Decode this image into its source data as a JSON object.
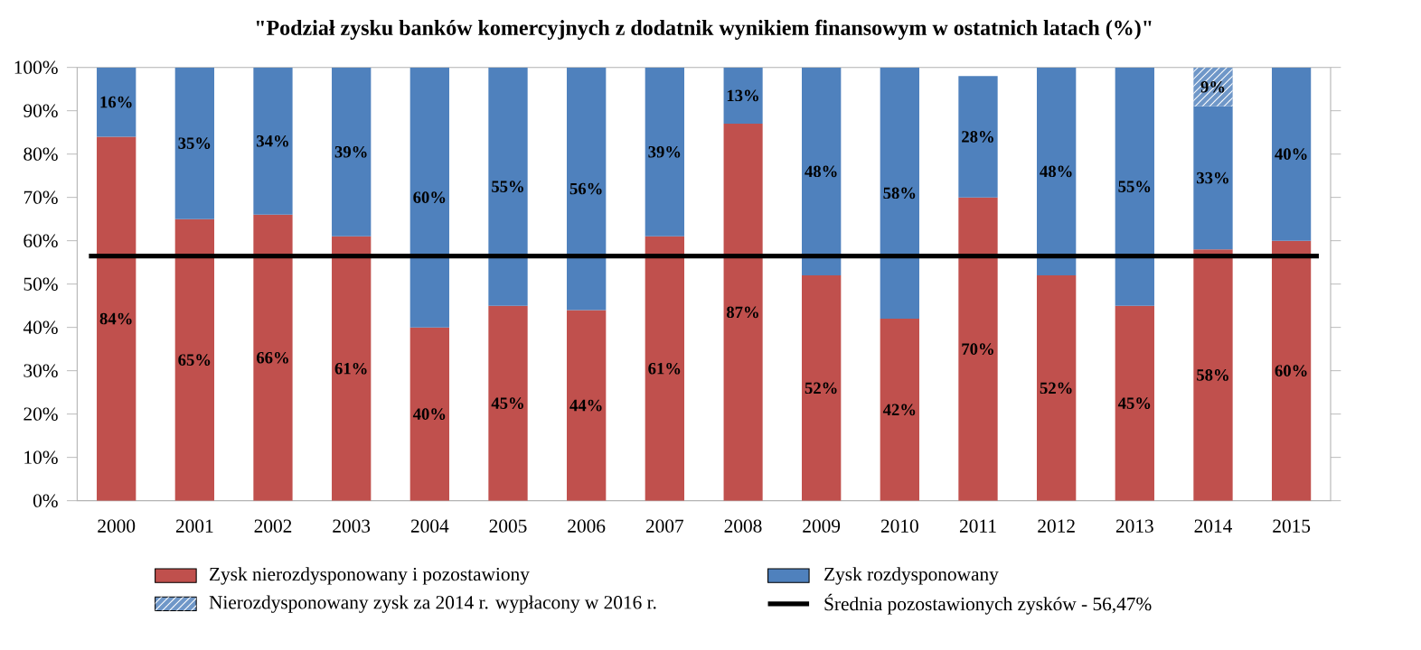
{
  "chart_data": {
    "type": "bar",
    "stacked": true,
    "title": "\"Podział zysku banków komercyjnych z dodatnik wynikiem finansowym w ostatnich latach (%)\"",
    "categories": [
      "2000",
      "2001",
      "2002",
      "2003",
      "2004",
      "2005",
      "2006",
      "2007",
      "2008",
      "2009",
      "2010",
      "2011",
      "2012",
      "2013",
      "2014",
      "2015"
    ],
    "series": [
      {
        "name": "Zysk nierozdysponowany i pozostawiony",
        "color": "#c0504d",
        "values": [
          84,
          65,
          66,
          61,
          40,
          45,
          44,
          61,
          87,
          52,
          42,
          70,
          52,
          45,
          58,
          60
        ],
        "value_labels": [
          "84%",
          "65%",
          "66%",
          "61%",
          "40%",
          "45%",
          "44%",
          "61%",
          "87%",
          "52%",
          "42%",
          "70%",
          "52%",
          "45%",
          "58%",
          "60%"
        ]
      },
      {
        "name": "Zysk rozdysponowany",
        "color": "#4f81bd",
        "values": [
          16,
          35,
          34,
          39,
          60,
          55,
          56,
          39,
          13,
          48,
          58,
          28,
          48,
          55,
          33,
          40
        ],
        "value_labels": [
          "16%",
          "35%",
          "34%",
          "39%",
          "60%",
          "55%",
          "56%",
          "39%",
          "13%",
          "48%",
          "58%",
          "28%",
          "48%",
          "55%",
          "33%",
          "40%"
        ]
      },
      {
        "name": "Nierozdysponowany zysk za 2014 r. wypłacony w 2016 r.",
        "color": "#6f97c8",
        "values": [
          null,
          null,
          null,
          null,
          null,
          null,
          null,
          null,
          null,
          null,
          null,
          null,
          null,
          null,
          9,
          null
        ],
        "value_labels": [
          null,
          null,
          null,
          null,
          null,
          null,
          null,
          null,
          null,
          null,
          null,
          null,
          null,
          null,
          "9%",
          null
        ]
      }
    ],
    "ref_lines": [
      {
        "axis": "y",
        "value": 56.47,
        "label": "Średnia pozostawionych zysków - 56,47%",
        "color": "#000000"
      }
    ],
    "ylim": [
      0,
      100
    ],
    "yticks": [
      {
        "value": 0,
        "label": "0%"
      },
      {
        "value": 10,
        "label": "10%"
      },
      {
        "value": 20,
        "label": "20%"
      },
      {
        "value": 30,
        "label": "30%"
      },
      {
        "value": 40,
        "label": "40%"
      },
      {
        "value": 50,
        "label": "50%"
      },
      {
        "value": 60,
        "label": "60%"
      },
      {
        "value": 70,
        "label": "70%"
      },
      {
        "value": 80,
        "label": "80%"
      },
      {
        "value": 90,
        "label": "90%"
      },
      {
        "value": 100,
        "label": "100%"
      }
    ],
    "legend": "bottom"
  }
}
